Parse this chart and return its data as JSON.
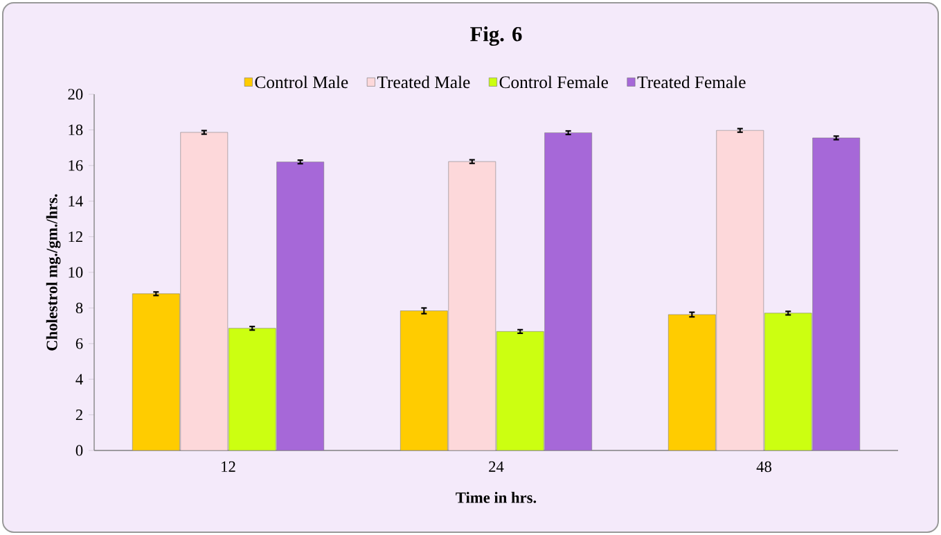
{
  "chart_data": {
    "type": "bar",
    "title": "Fig. 6",
    "xlabel": "Time in hrs.",
    "ylabel": "Cholestrol mg./gm./hrs.",
    "categories": [
      "12",
      "24",
      "48"
    ],
    "series": [
      {
        "name": "Control Male",
        "color": "#ffcc00",
        "values": [
          8.8,
          7.84,
          7.63
        ],
        "errors": [
          0.1,
          0.16,
          0.13
        ]
      },
      {
        "name": "Treated Male",
        "color": "#fdd8da",
        "values": [
          17.86,
          16.22,
          17.97
        ],
        "errors": [
          0.1,
          0.1,
          0.1
        ]
      },
      {
        "name": "Control Female",
        "color": "#ccff11",
        "values": [
          6.86,
          6.68,
          7.71
        ],
        "errors": [
          0.1,
          0.1,
          0.1
        ]
      },
      {
        "name": "Treated Female",
        "color": "#a668d8",
        "values": [
          16.2,
          17.84,
          17.55
        ],
        "errors": [
          0.1,
          0.1,
          0.1
        ]
      }
    ],
    "ylim": [
      0,
      20
    ],
    "yticks": [
      0,
      2,
      4,
      6,
      8,
      10,
      12,
      14,
      16,
      18,
      20
    ],
    "grid": false,
    "legend": "top"
  }
}
